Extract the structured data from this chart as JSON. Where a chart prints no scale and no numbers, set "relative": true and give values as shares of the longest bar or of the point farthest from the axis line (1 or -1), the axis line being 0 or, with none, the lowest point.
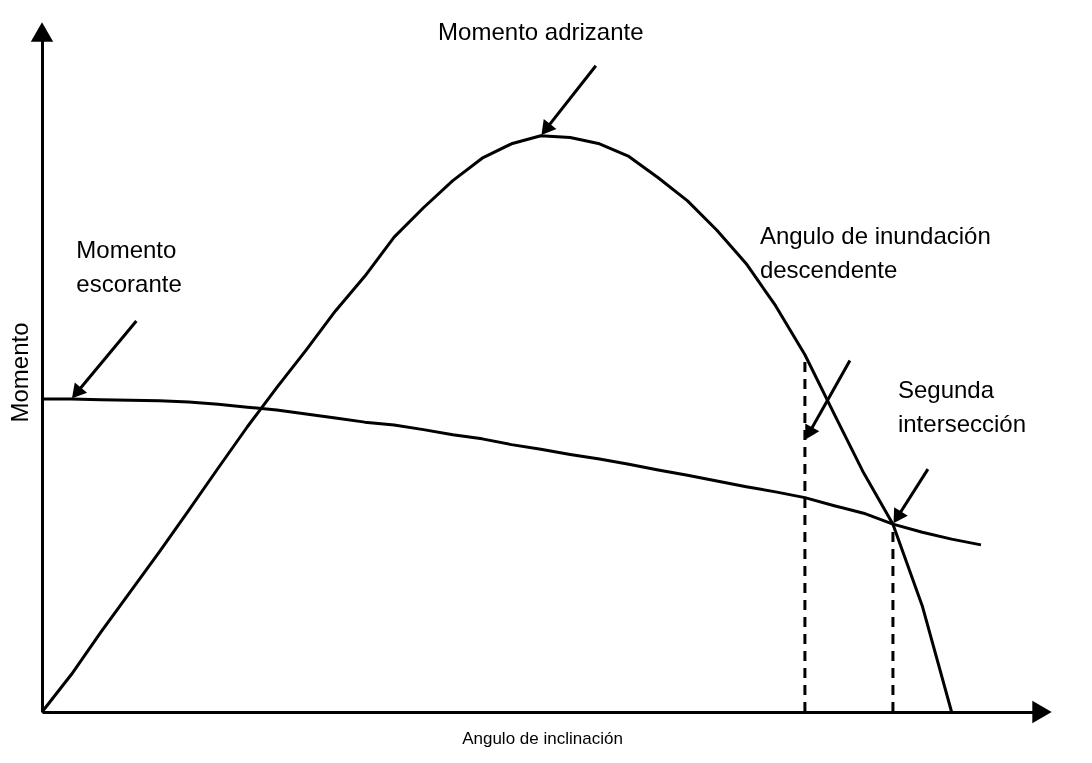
{
  "chart_data": {
    "type": "line",
    "relative": true,
    "xlabel": "Angulo de inclinación",
    "ylabel": "Momento",
    "grid": false,
    "marker": "none",
    "categories": [
      null,
      null,
      null,
      null,
      null,
      null,
      null,
      null,
      null,
      null,
      null,
      null,
      null,
      null,
      null,
      null,
      null,
      null,
      null,
      null,
      null,
      null,
      null,
      null,
      null,
      null,
      null,
      null,
      null,
      null,
      null,
      null,
      null
    ],
    "series": [
      {
        "color": "#000000",
        "values": [
          0,
          0.065,
          0.138,
          0.208,
          0.278,
          0.35,
          0.423,
          0.495,
          0.563,
          0.628,
          0.696,
          0.756,
          0.824,
          0.875,
          0.922,
          0.961,
          0.986,
          1,
          0.997,
          0.986,
          0.964,
          0.927,
          0.887,
          0.836,
          0.778,
          0.705,
          0.62,
          0.517,
          0.415,
          0.326,
          0.184,
          0,
          null
        ]
      },
      {
        "color": "#000000",
        "values": [
          0.543,
          0.543,
          0.542,
          0.541,
          0.54,
          0.538,
          0.534,
          0.529,
          0.524,
          0.517,
          0.51,
          0.503,
          0.498,
          0.49,
          0.481,
          0.474,
          0.464,
          0.456,
          0.447,
          0.439,
          0.43,
          0.42,
          0.411,
          0.401,
          0.391,
          0.382,
          0.372,
          0.358,
          0.345,
          0.326,
          0.312,
          0.3,
          0.29
        ]
      }
    ],
    "annotations": [
      "Momento adrizante",
      "Momento escorante",
      "Angulo de inundación descendente",
      "Segunda intersección"
    ]
  }
}
